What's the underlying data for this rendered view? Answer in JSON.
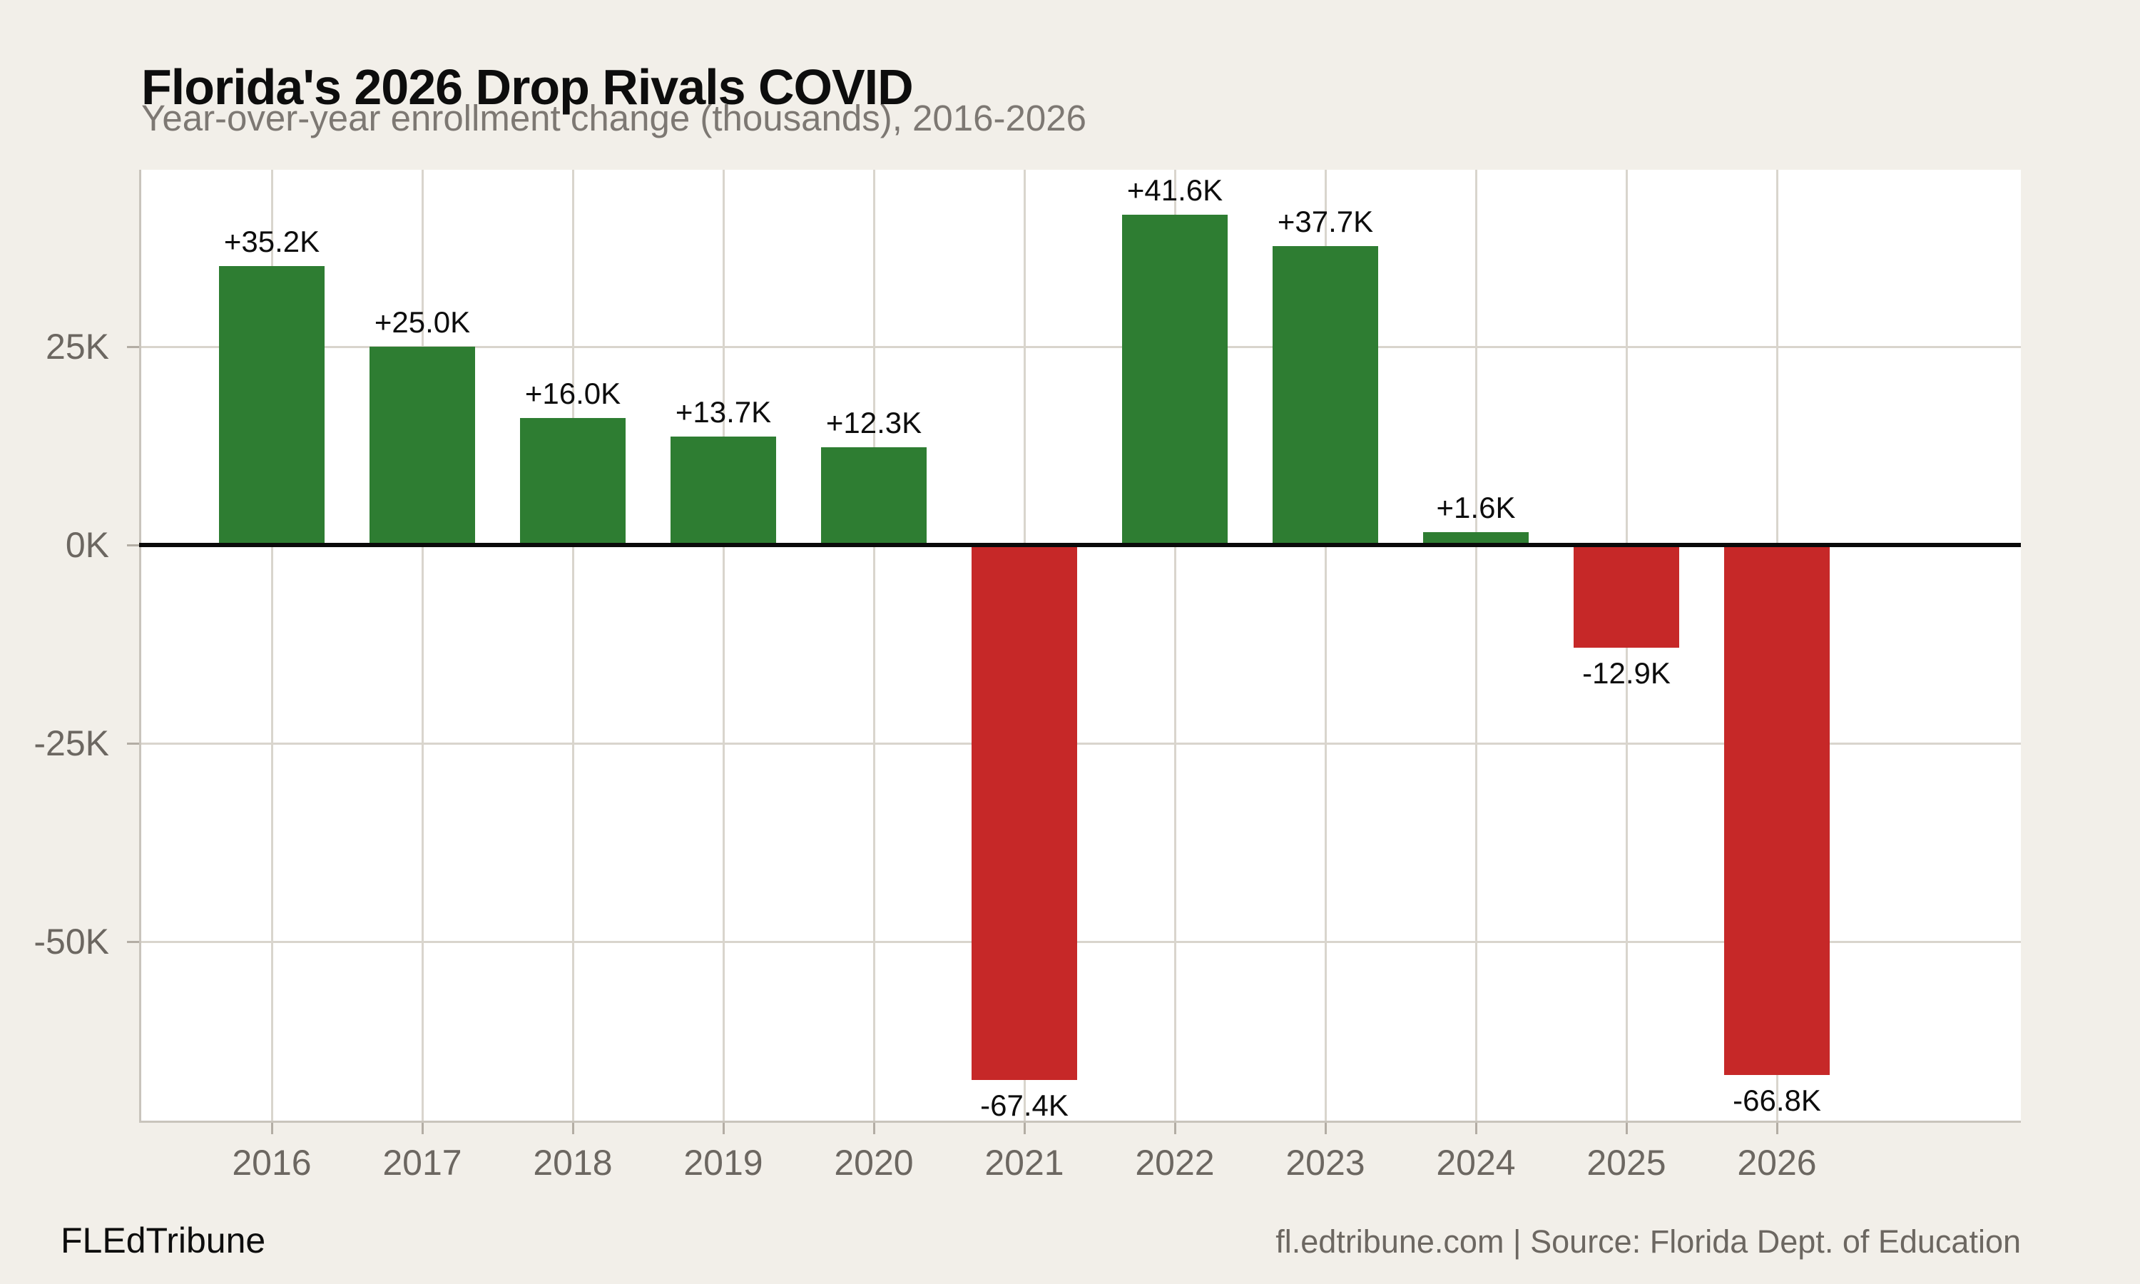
{
  "header": {
    "title": "Florida's 2026 Drop Rivals COVID",
    "subtitle": "Year-over-year enrollment change (thousands), 2016-2026"
  },
  "footer": {
    "brand": "FLEdTribune",
    "source": "fl.edtribune.com | Source: Florida Dept. of Education"
  },
  "colors": {
    "positive_bar": "#2e7d32",
    "negative_bar": "#c62828",
    "page_background": "#f2efe9",
    "plot_background": "#ffffff",
    "gridline": "#d9d5cd",
    "axis_spine": "#c9c4bc",
    "tick_mark": "#b3ada4",
    "zero_line": "#0a0a0a",
    "axis_label_text": "#6c6761",
    "subtitle_text": "#7d7873",
    "title_text": "#0d0d0d",
    "bar_label_text": "#0d0d0d"
  },
  "chart_data": {
    "type": "bar",
    "title": "Florida's 2026 Drop Rivals COVID",
    "subtitle": "Year-over-year enrollment change (thousands), 2016-2026",
    "unit": "thousands of students (K)",
    "categories": [
      "2016",
      "2017",
      "2018",
      "2019",
      "2020",
      "2021",
      "2022",
      "2023",
      "2024",
      "2025",
      "2026"
    ],
    "values": [
      35.2,
      25.0,
      16.0,
      13.7,
      12.3,
      -67.4,
      41.6,
      37.7,
      1.6,
      -12.9,
      -66.8
    ],
    "bar_labels": [
      "+35.2K",
      "+25.0K",
      "+16.0K",
      "+13.7K",
      "+12.3K",
      "-67.4K",
      "+41.6K",
      "+37.7K",
      "+1.6K",
      "-12.9K",
      "-66.8K"
    ],
    "yticks": [
      {
        "value": 25,
        "label": "25K"
      },
      {
        "value": 0,
        "label": "0K"
      },
      {
        "value": -25,
        "label": "-25K"
      },
      {
        "value": -50,
        "label": "-50K"
      }
    ],
    "ylim": [
      -72.8,
      47.3
    ],
    "grid": true,
    "legend": false
  }
}
